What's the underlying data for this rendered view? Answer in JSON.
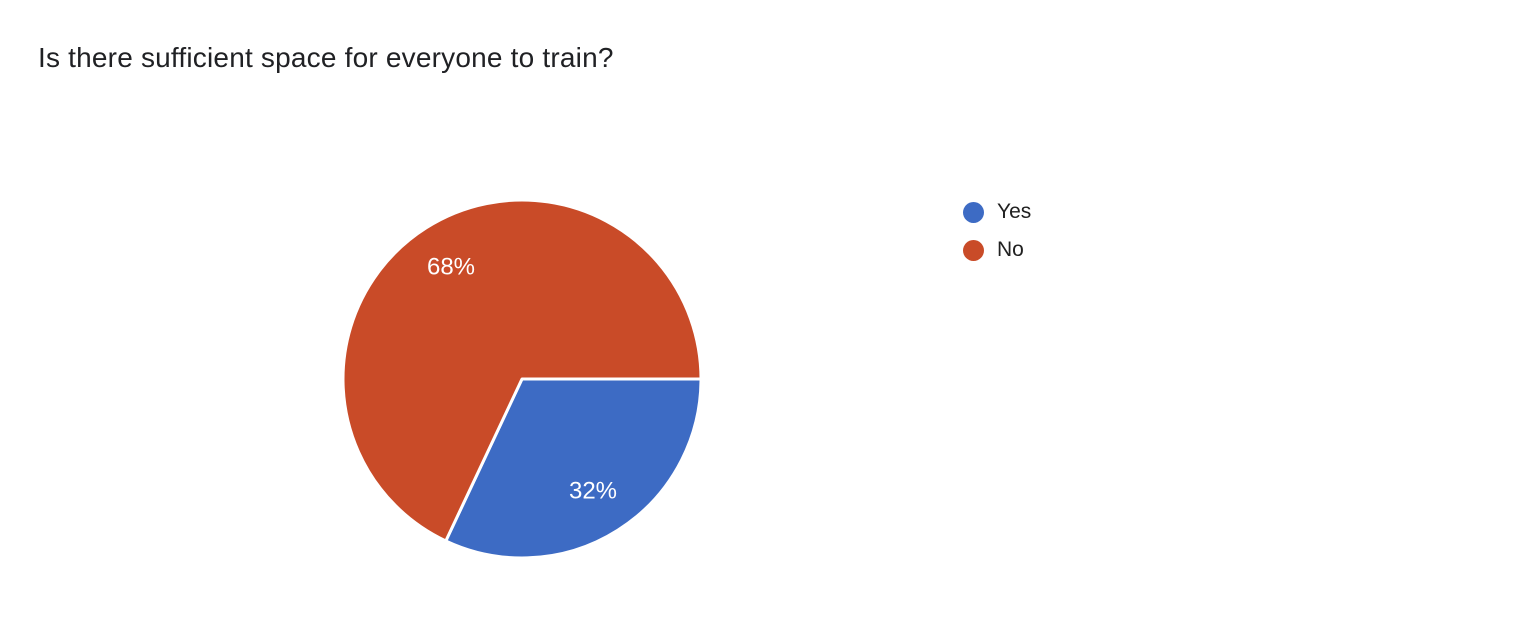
{
  "page": {
    "background": "#ffffff"
  },
  "chart_data": {
    "type": "pie",
    "title": "Is there sufficient space for everyone to train?",
    "labels": [
      "Yes",
      "No"
    ],
    "values": [
      32,
      68
    ],
    "unit": "%",
    "slice_labels": [
      "32%",
      "68%"
    ],
    "colors": [
      "#3d6bc4",
      "#c94b28"
    ],
    "slice_label_color": "#ffffff",
    "slice_border_color": "#ffffff",
    "title_color": "#202124",
    "legend_text_color": "#212121",
    "legend_position": "right",
    "start_angle_deg": 0,
    "direction": "clockwise",
    "label_radius_ratio": 0.74,
    "radius_px": 179
  }
}
